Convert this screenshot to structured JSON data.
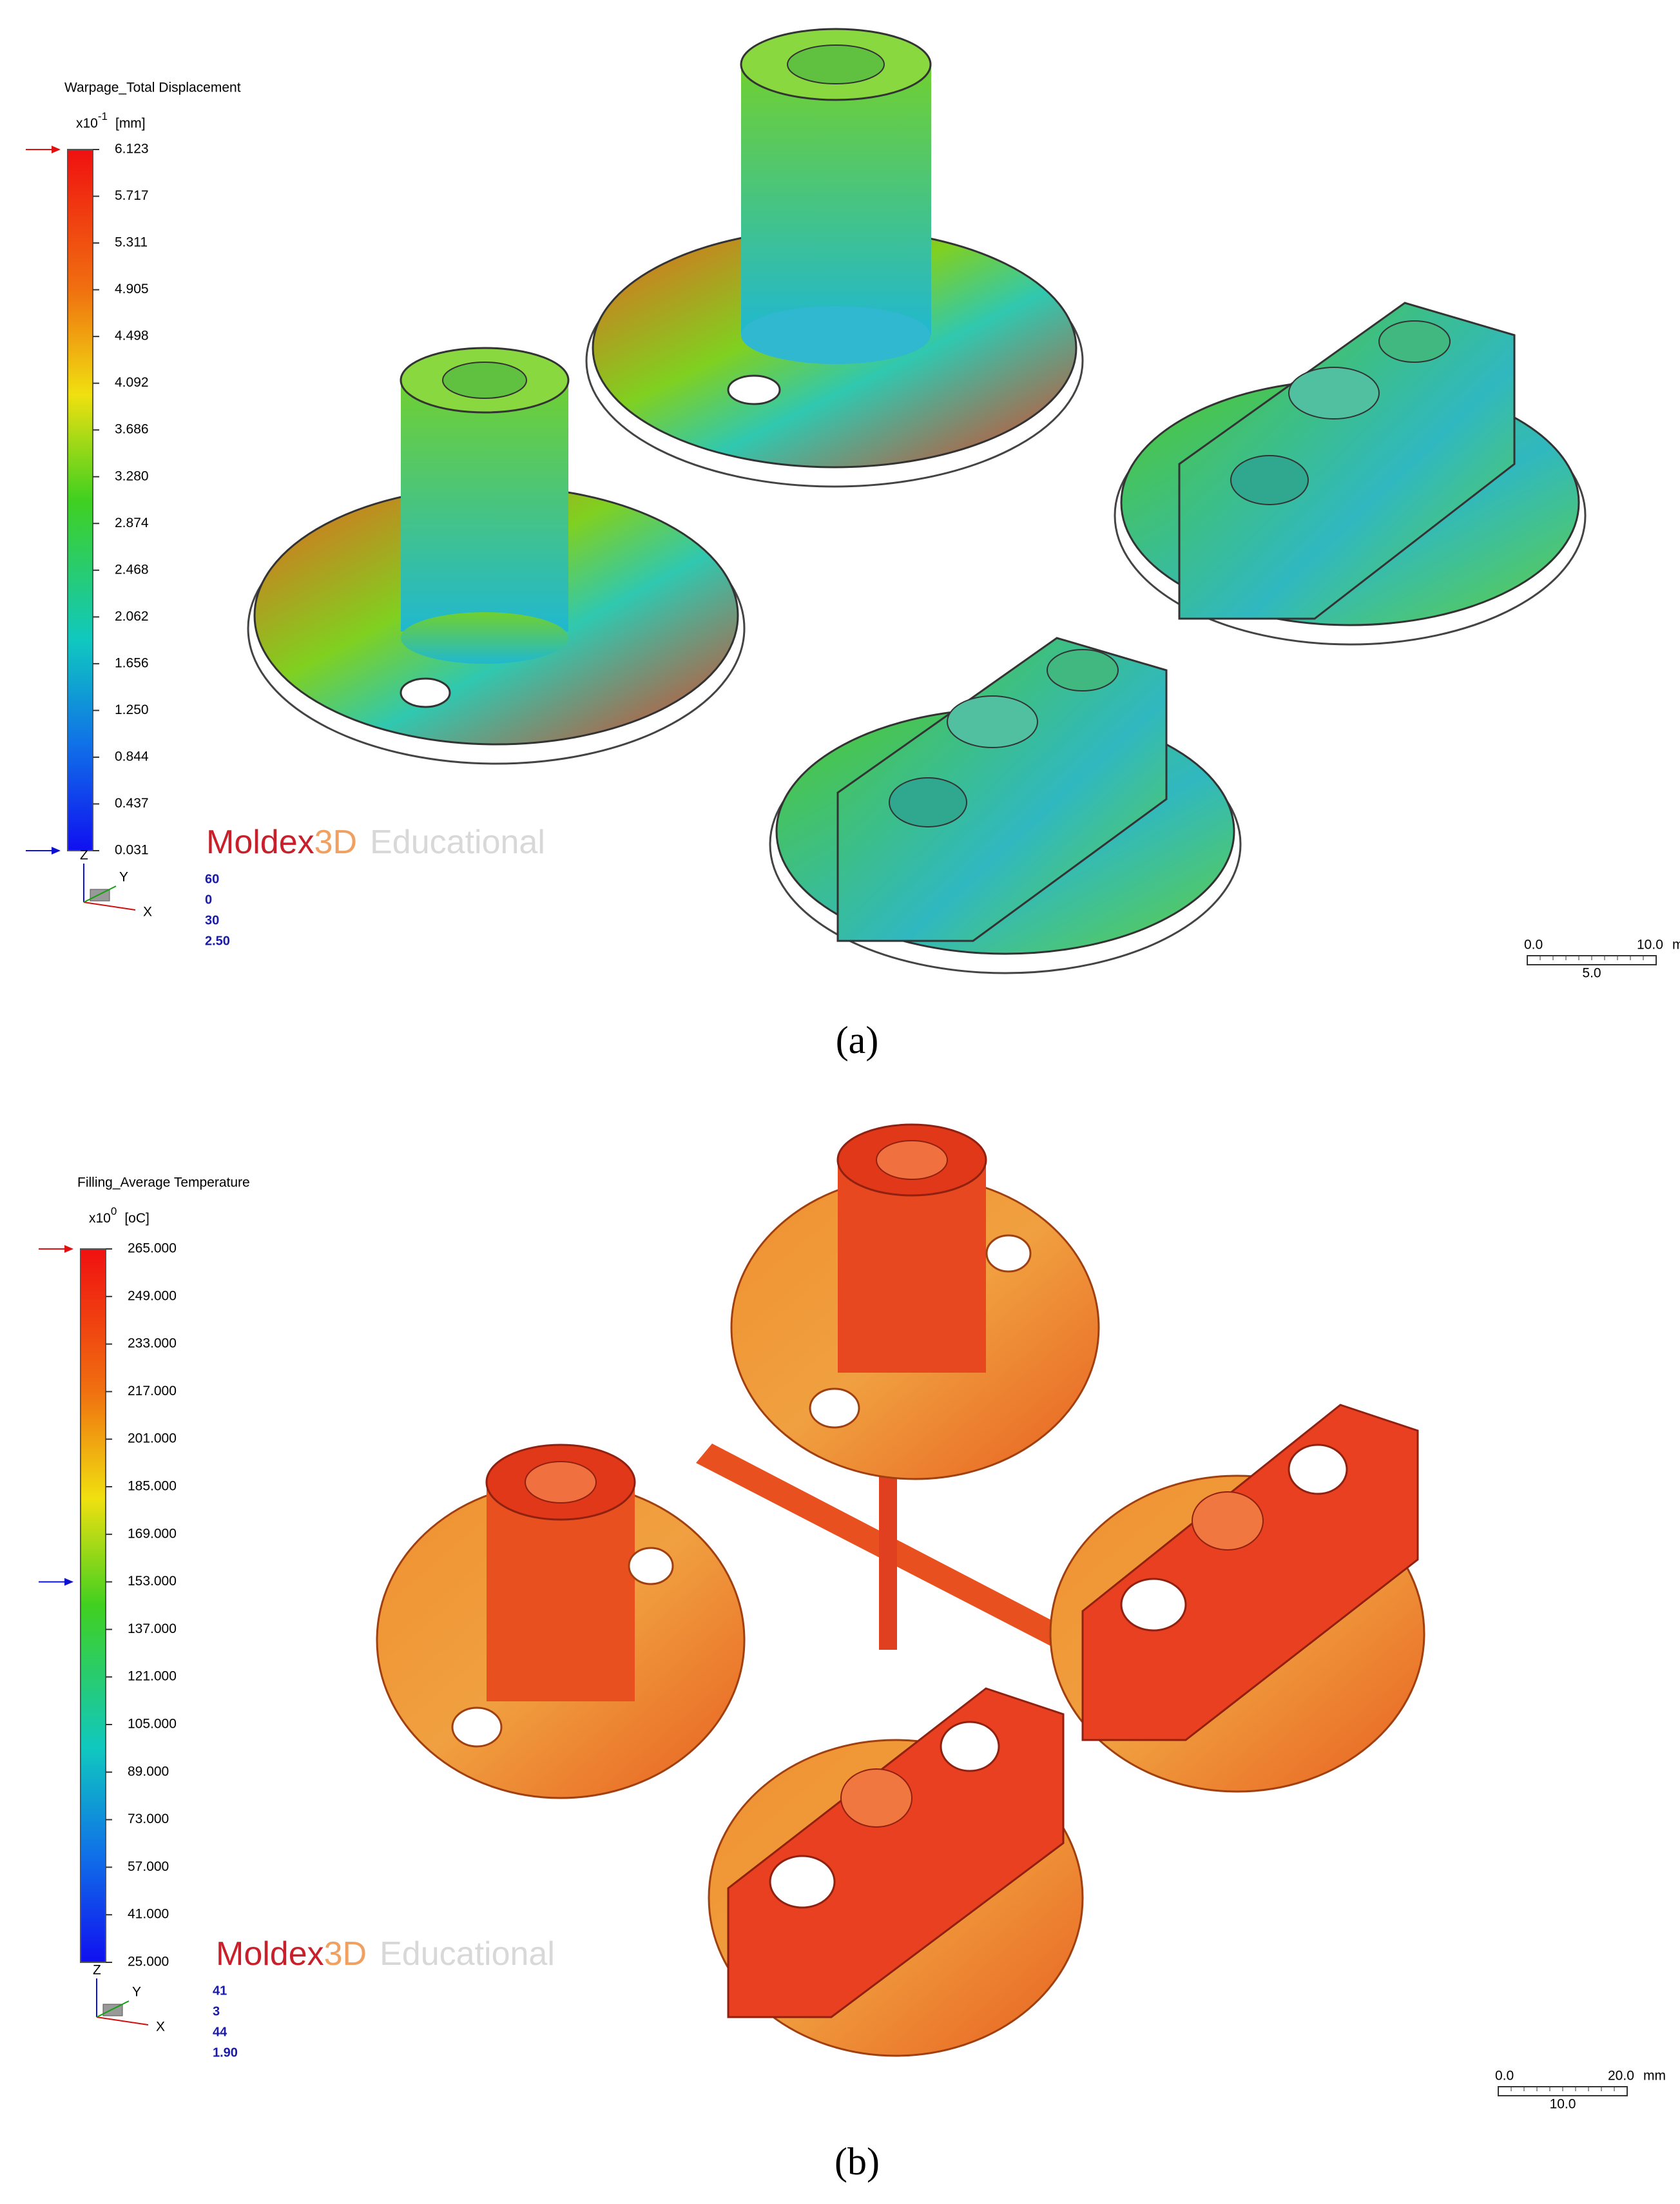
{
  "panels": [
    {
      "legend_title": "Warpage_Total Displacement",
      "multiplier": "x10",
      "exponent": "-1",
      "unit": "[mm]",
      "ticks": [
        "6.123",
        "5.717",
        "5.311",
        "4.905",
        "4.498",
        "4.092",
        "3.686",
        "3.280",
        "2.874",
        "2.468",
        "2.062",
        "1.656",
        "1.250",
        "0.844",
        "0.437",
        "0.031"
      ],
      "watermark": {
        "brand": "Moldex",
        "brand_suffix": "3D",
        "edition": "Educational"
      },
      "axes": {
        "z": "Z",
        "y": "Y",
        "x": "X"
      },
      "view": [
        "60",
        "0",
        "30",
        "2.50"
      ],
      "scale_bar": {
        "start": "0.0",
        "end": "10.0",
        "unit": "mm",
        "middle": "5.0"
      },
      "caption": "(a)"
    },
    {
      "legend_title": "Filling_Average Temperature",
      "multiplier": "x10",
      "exponent": "0",
      "unit": "[oC]",
      "ticks": [
        "265.000",
        "249.000",
        "233.000",
        "217.000",
        "201.000",
        "185.000",
        "169.000",
        "153.000",
        "137.000",
        "121.000",
        "105.000",
        "89.000",
        "73.000",
        "57.000",
        "41.000",
        "25.000"
      ],
      "watermark": {
        "brand": "Moldex",
        "brand_suffix": "3D",
        "edition": "Educational"
      },
      "axes": {
        "z": "Z",
        "y": "Y",
        "x": "X"
      },
      "view": [
        "41",
        "3",
        "44",
        "1.90"
      ],
      "scale_bar": {
        "start": "0.0",
        "end": "20.0",
        "unit": "mm",
        "middle": "10.0"
      },
      "caption": "(b)"
    }
  ]
}
